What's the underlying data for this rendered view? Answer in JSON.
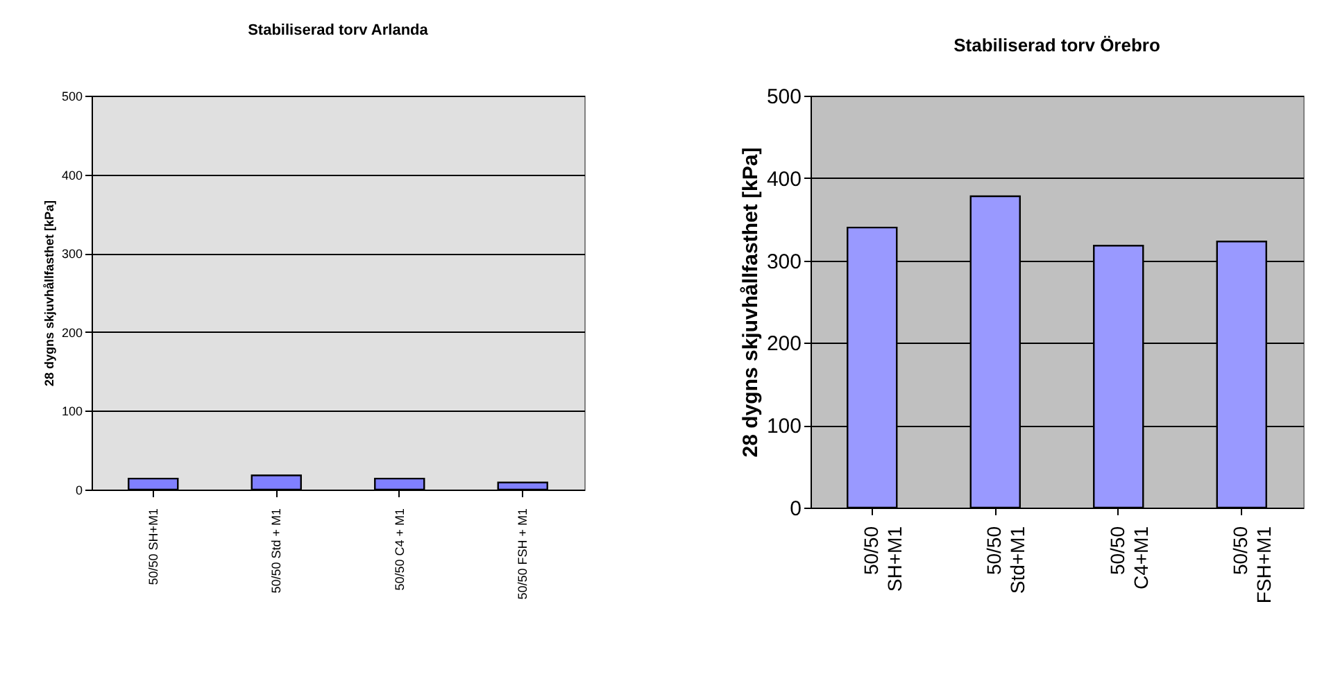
{
  "chart_data": [
    {
      "type": "bar",
      "title": "Stabiliserad torv Arlanda",
      "ylabel": "28 dygns skjuvhållfasthet [kPa]",
      "categories": [
        "50/50 SH+M1",
        "50/50 Std + M1",
        "50/50 C4 + M1",
        "50/50 FSH + M1"
      ],
      "values": [
        14,
        18,
        14,
        9
      ],
      "color": "#8080ff",
      "ylim": [
        0,
        500
      ],
      "yticks": [
        0,
        100,
        200,
        300,
        400,
        500
      ],
      "grid": "y"
    },
    {
      "type": "bar",
      "title": "Stabiliserad torv Örebro",
      "ylabel": "28 dygns skjuvhållfasthet [kPa]",
      "categories": [
        "50/50 SH+M1",
        "50/50 Std+M1",
        "50/50 C4+M1",
        "50/50 FSH+M1"
      ],
      "values": [
        340,
        378,
        318,
        323
      ],
      "color": "#9999ff",
      "ylim": [
        0,
        500
      ],
      "yticks": [
        0,
        100,
        200,
        300,
        400,
        500
      ],
      "grid": "y"
    }
  ]
}
